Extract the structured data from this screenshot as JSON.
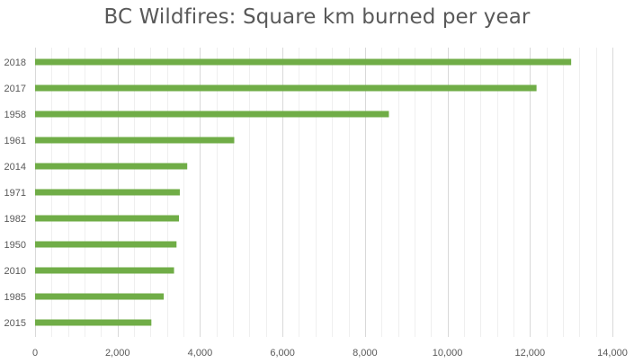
{
  "chart_data": {
    "type": "bar",
    "orientation": "horizontal",
    "title": "BC Wildfires: Square km burned per year",
    "xlabel": "",
    "ylabel": "",
    "categories": [
      "2018",
      "2017",
      "1958",
      "1961",
      "2014",
      "1971",
      "1982",
      "1950",
      "2010",
      "1985",
      "2015"
    ],
    "values": [
      13000,
      12160,
      8580,
      4830,
      3690,
      3510,
      3490,
      3430,
      3370,
      3120,
      2820
    ],
    "xlim": [
      0,
      14000
    ],
    "x_ticks": [
      "0",
      "2,000",
      "4,000",
      "6,000",
      "8,000",
      "10,000",
      "12,000",
      "14,000"
    ],
    "gridlines": "vertical",
    "legend": "none",
    "bar_color": "#70ad47",
    "grid_color": "#d9d9d9"
  }
}
